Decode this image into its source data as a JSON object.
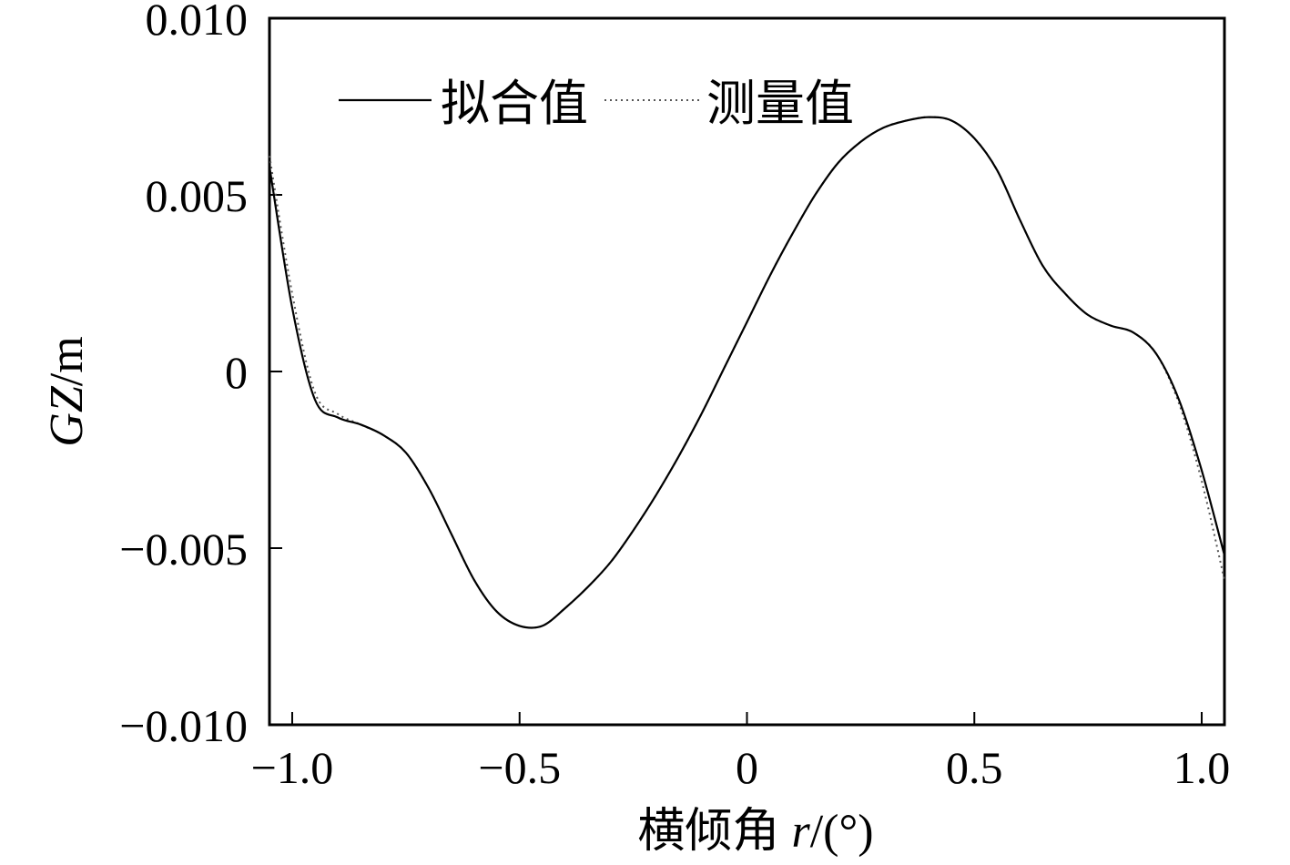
{
  "chart_data": {
    "type": "line",
    "title": "",
    "xlabel": "横倾角 r/(°)",
    "xlabel_parts": {
      "prefix": "横倾角 ",
      "var": "r",
      "suffix": "/(°)"
    },
    "ylabel": "GZ/m",
    "ylabel_parts": {
      "var": "GZ",
      "suffix": "/m"
    },
    "xlim": [
      -1.05,
      1.05
    ],
    "ylim": [
      -0.01,
      0.01
    ],
    "x_ticks": [
      -1.0,
      -0.5,
      0,
      0.5,
      1.0
    ],
    "x_tick_labels": [
      "−1.0",
      "−0.5",
      "0",
      "0.5",
      "1.0"
    ],
    "y_ticks": [
      0.01,
      0.005,
      0,
      -0.005,
      -0.01
    ],
    "y_tick_labels": [
      "0.010",
      "0.005",
      "0",
      "−0.005",
      "−0.010"
    ],
    "grid": false,
    "legend_position": "top-left",
    "series": [
      {
        "name": "拟合值",
        "style": "solid",
        "color": "#000000",
        "x": [
          -1.05,
          -1.0,
          -0.95,
          -0.9,
          -0.85,
          -0.8,
          -0.75,
          -0.7,
          -0.65,
          -0.6,
          -0.55,
          -0.5,
          -0.45,
          -0.4,
          -0.35,
          -0.3,
          -0.25,
          -0.2,
          -0.15,
          -0.1,
          -0.05,
          0.0,
          0.05,
          0.1,
          0.15,
          0.2,
          0.25,
          0.3,
          0.35,
          0.4,
          0.45,
          0.5,
          0.55,
          0.6,
          0.65,
          0.7,
          0.75,
          0.8,
          0.85,
          0.9,
          0.95,
          1.0,
          1.05
        ],
        "y": [
          0.0058,
          0.0018,
          -0.0008,
          -0.0013,
          -0.0015,
          -0.0018,
          -0.0023,
          -0.0033,
          -0.0046,
          -0.0059,
          -0.0068,
          -0.0072,
          -0.0072,
          -0.0067,
          -0.0061,
          -0.0054,
          -0.0045,
          -0.0035,
          -0.0024,
          -0.0012,
          0.0001,
          0.0014,
          0.0027,
          0.0039,
          0.005,
          0.0059,
          0.0065,
          0.0069,
          0.0071,
          0.0072,
          0.0071,
          0.0066,
          0.0057,
          0.0043,
          0.003,
          0.0022,
          0.0016,
          0.0013,
          0.0011,
          0.0005,
          -0.0008,
          -0.0028,
          -0.0052
        ]
      },
      {
        "name": "测量值",
        "style": "dotted",
        "color": "#555555",
        "x": [
          -1.05,
          -1.0,
          -0.95,
          -0.9,
          -0.85,
          -0.8,
          -0.75,
          -0.7,
          -0.65,
          -0.6,
          -0.55,
          -0.5,
          -0.45,
          -0.4,
          -0.35,
          -0.3,
          -0.25,
          -0.2,
          -0.15,
          -0.1,
          -0.05,
          0.0,
          0.05,
          0.1,
          0.15,
          0.2,
          0.25,
          0.3,
          0.35,
          0.4,
          0.45,
          0.5,
          0.55,
          0.6,
          0.65,
          0.7,
          0.75,
          0.8,
          0.85,
          0.9,
          0.95,
          1.0,
          1.05
        ],
        "y": [
          0.0061,
          0.0022,
          -0.0006,
          -0.0012,
          -0.0015,
          -0.0018,
          -0.0023,
          -0.0033,
          -0.0046,
          -0.0059,
          -0.0068,
          -0.0072,
          -0.0072,
          -0.0067,
          -0.0061,
          -0.0054,
          -0.0045,
          -0.0035,
          -0.0024,
          -0.0012,
          0.0001,
          0.0014,
          0.0027,
          0.0039,
          0.005,
          0.0059,
          0.0065,
          0.0069,
          0.0071,
          0.0072,
          0.0071,
          0.0066,
          0.0057,
          0.0043,
          0.003,
          0.0022,
          0.0016,
          0.0013,
          0.0011,
          0.0005,
          -0.0009,
          -0.0031,
          -0.0059
        ]
      }
    ]
  }
}
